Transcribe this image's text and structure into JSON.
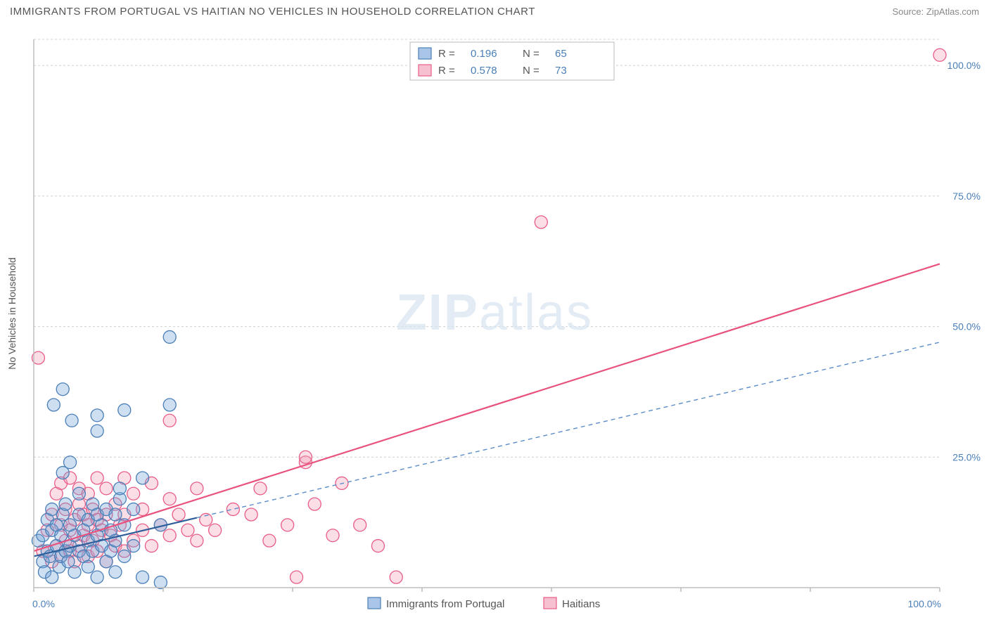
{
  "header": {
    "title": "IMMIGRANTS FROM PORTUGAL VS HAITIAN NO VEHICLES IN HOUSEHOLD CORRELATION CHART",
    "source_label": "Source: ",
    "source_name": "ZipAtlas.com"
  },
  "watermark": {
    "bold": "ZIP",
    "light": "atlas"
  },
  "chart": {
    "type": "scatter",
    "xlim": [
      0,
      100
    ],
    "ylim": [
      0,
      105
    ],
    "x_ticks": [
      0,
      100
    ],
    "x_tick_labels": [
      "0.0%",
      "100.0%"
    ],
    "y_ticks": [
      25,
      50,
      75,
      100
    ],
    "y_tick_labels": [
      "25.0%",
      "50.0%",
      "75.0%",
      "100.0%"
    ],
    "y_axis_label": "No Vehicles in Household",
    "grid_color": "#d0d0d0",
    "background_color": "#ffffff",
    "marker_radius": 9,
    "series_blue": {
      "name": "Immigrants from Portugal",
      "color_fill": "#a9c6e8",
      "color_stroke": "#4a7fb8",
      "R": "0.196",
      "N": "65",
      "trend": {
        "x1": 0,
        "y1": 6,
        "x2": 100,
        "y2": 47,
        "dash_from_x": 18
      },
      "points": [
        [
          0.5,
          9
        ],
        [
          1,
          5
        ],
        [
          1,
          10
        ],
        [
          1.2,
          3
        ],
        [
          1.5,
          7
        ],
        [
          1.5,
          13
        ],
        [
          1.8,
          6
        ],
        [
          2,
          2
        ],
        [
          2,
          11
        ],
        [
          2,
          15
        ],
        [
          2.2,
          35
        ],
        [
          2.5,
          8
        ],
        [
          2.5,
          12
        ],
        [
          2.8,
          4
        ],
        [
          3,
          6
        ],
        [
          3,
          10
        ],
        [
          3.2,
          14
        ],
        [
          3.2,
          22
        ],
        [
          3.2,
          38
        ],
        [
          3.5,
          7
        ],
        [
          3.5,
          16
        ],
        [
          3.8,
          5
        ],
        [
          4,
          8
        ],
        [
          4,
          12
        ],
        [
          4,
          24
        ],
        [
          4.2,
          32
        ],
        [
          4.5,
          3
        ],
        [
          4.5,
          10
        ],
        [
          5,
          7
        ],
        [
          5,
          14
        ],
        [
          5,
          18
        ],
        [
          5.5,
          6
        ],
        [
          5.5,
          11
        ],
        [
          6,
          4
        ],
        [
          6,
          9
        ],
        [
          6,
          13
        ],
        [
          6.5,
          7
        ],
        [
          6.5,
          16
        ],
        [
          7,
          2
        ],
        [
          7,
          10
        ],
        [
          7,
          14
        ],
        [
          7,
          30
        ],
        [
          7,
          33
        ],
        [
          7.5,
          8
        ],
        [
          7.5,
          12
        ],
        [
          8,
          5
        ],
        [
          8,
          15
        ],
        [
          8.5,
          7
        ],
        [
          8.5,
          11
        ],
        [
          9,
          3
        ],
        [
          9,
          9
        ],
        [
          9,
          14
        ],
        [
          9.5,
          17
        ],
        [
          9.5,
          19
        ],
        [
          10,
          6
        ],
        [
          10,
          12
        ],
        [
          10,
          34
        ],
        [
          11,
          8
        ],
        [
          11,
          15
        ],
        [
          12,
          2
        ],
        [
          12,
          21
        ],
        [
          14,
          1
        ],
        [
          14,
          12
        ],
        [
          15,
          48
        ],
        [
          15,
          35
        ]
      ]
    },
    "series_pink": {
      "name": "Haitians",
      "color_fill": "#f6c0d0",
      "color_stroke": "#e85d88",
      "R": "0.578",
      "N": "73",
      "trend": {
        "x1": 0,
        "y1": 7,
        "x2": 100,
        "y2": 62
      },
      "points": [
        [
          0.5,
          44
        ],
        [
          1,
          7
        ],
        [
          1.5,
          11
        ],
        [
          2,
          5
        ],
        [
          2,
          14
        ],
        [
          2.5,
          8
        ],
        [
          2.5,
          18
        ],
        [
          3,
          6
        ],
        [
          3,
          12
        ],
        [
          3,
          20
        ],
        [
          3.5,
          9
        ],
        [
          3.5,
          15
        ],
        [
          4,
          7
        ],
        [
          4,
          11
        ],
        [
          4,
          21
        ],
        [
          4.5,
          5
        ],
        [
          4.5,
          13
        ],
        [
          5,
          8
        ],
        [
          5,
          16
        ],
        [
          5,
          19
        ],
        [
          5.5,
          10
        ],
        [
          5.5,
          14
        ],
        [
          6,
          6
        ],
        [
          6,
          12
        ],
        [
          6,
          18
        ],
        [
          6.5,
          9
        ],
        [
          6.5,
          15
        ],
        [
          7,
          7
        ],
        [
          7,
          13
        ],
        [
          7,
          21
        ],
        [
          7.5,
          11
        ],
        [
          8,
          5
        ],
        [
          8,
          14
        ],
        [
          8,
          19
        ],
        [
          8.5,
          10
        ],
        [
          9,
          8
        ],
        [
          9,
          16
        ],
        [
          9.5,
          12
        ],
        [
          10,
          7
        ],
        [
          10,
          14
        ],
        [
          10,
          21
        ],
        [
          11,
          9
        ],
        [
          11,
          18
        ],
        [
          12,
          11
        ],
        [
          12,
          15
        ],
        [
          13,
          8
        ],
        [
          13,
          20
        ],
        [
          14,
          12
        ],
        [
          15,
          10
        ],
        [
          15,
          17
        ],
        [
          15,
          32
        ],
        [
          16,
          14
        ],
        [
          17,
          11
        ],
        [
          18,
          9
        ],
        [
          18,
          19
        ],
        [
          19,
          13
        ],
        [
          20,
          11
        ],
        [
          22,
          15
        ],
        [
          24,
          14
        ],
        [
          25,
          19
        ],
        [
          26,
          9
        ],
        [
          28,
          12
        ],
        [
          29,
          2
        ],
        [
          30,
          24
        ],
        [
          30,
          25
        ],
        [
          31,
          16
        ],
        [
          33,
          10
        ],
        [
          34,
          20
        ],
        [
          36,
          12
        ],
        [
          38,
          8
        ],
        [
          40,
          2
        ],
        [
          56,
          70
        ],
        [
          100,
          102
        ]
      ]
    },
    "legend_top": {
      "r_label": "R  =",
      "n_label": "N  ="
    },
    "legend_bottom": {
      "series1": "Immigrants from Portugal",
      "series2": "Haitians"
    }
  }
}
